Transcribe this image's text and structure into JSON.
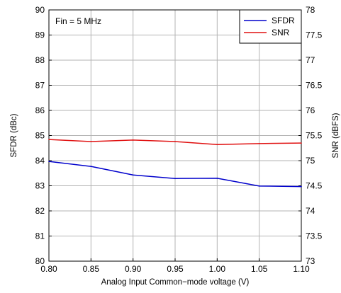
{
  "chart_data": {
    "type": "line",
    "annotation": "Fin = 5 MHz",
    "xlabel": "Analog Input Common−mode voltage (V)",
    "ylabel_left": "SFDR (dBc)",
    "ylabel_right": "SNR (dBFS)",
    "xlim": [
      0.8,
      1.1
    ],
    "ylim_left": [
      80,
      90
    ],
    "ylim_right": [
      73,
      78
    ],
    "x_ticks": [
      "0.80",
      "0.85",
      "0.90",
      "0.95",
      "1.00",
      "1.05",
      "1.10"
    ],
    "y_left_ticks": [
      "80",
      "81",
      "82",
      "83",
      "84",
      "85",
      "86",
      "87",
      "88",
      "89",
      "90"
    ],
    "y_right_ticks": [
      "73",
      "73.5",
      "74",
      "74.5",
      "75",
      "75.5",
      "76",
      "76.5",
      "77",
      "77.5",
      "78"
    ],
    "grid": true,
    "legend_position": "top-right",
    "x": [
      0.8,
      0.85,
      0.9,
      0.95,
      1.0,
      1.05,
      1.1
    ],
    "series": [
      {
        "name": "SFDR",
        "axis": "left",
        "color": "#0000cc",
        "values": [
          83.97,
          83.77,
          83.43,
          83.29,
          83.3,
          82.99,
          82.97
        ]
      },
      {
        "name": "SNR",
        "axis": "right",
        "color": "#e01010",
        "values": [
          75.42,
          75.38,
          75.41,
          75.38,
          75.32,
          75.34,
          75.35
        ]
      }
    ]
  }
}
